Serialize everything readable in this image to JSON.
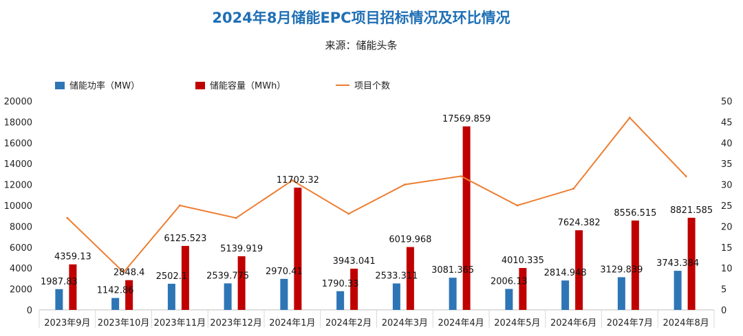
{
  "chart_data": {
    "type": "bar",
    "title": "2024年8月储能EPC项目招标情况及环比情况",
    "subtitle": "来源：储能头条",
    "categories": [
      "2023年9月",
      "2023年10月",
      "2023年11月",
      "2023年12月",
      "2024年1月",
      "2024年2月",
      "2024年3月",
      "2024年4月",
      "2024年5月",
      "2024年6月",
      "2024年7月",
      "2024年8月"
    ],
    "series": [
      {
        "name": "储能功率（MW）",
        "chart": "bar",
        "axis": "left",
        "color": "#2E75B6",
        "values": [
          1987.83,
          1142.86,
          2502.1,
          2539.775,
          2970.41,
          1790.33,
          2533.311,
          3081.365,
          2006.13,
          2814.948,
          3129.839,
          3743.384
        ],
        "labels": [
          "1987.83",
          "1142.86",
          "2502.1",
          "2539.775",
          "2970.41",
          "1790.33",
          "2533.311",
          "3081.365",
          "2006.13",
          "2814.948",
          "3129.839",
          "3743.384"
        ]
      },
      {
        "name": "储能容量（MWh）",
        "chart": "bar",
        "axis": "left",
        "color": "#C00000",
        "values": [
          4359.13,
          2848.4,
          6125.523,
          5139.919,
          11702.32,
          3943.041,
          6019.968,
          17569.859,
          4010.335,
          7624.382,
          8556.515,
          8821.585
        ],
        "labels": [
          "4359.13",
          "2848.4",
          "6125.523",
          "5139.919",
          "11702.32",
          "3943.041",
          "6019.968",
          "17569.859",
          "4010.335",
          "7624.382",
          "8556.515",
          "8821.585"
        ]
      },
      {
        "name": "项目个数",
        "chart": "line",
        "axis": "right",
        "color": "#ED7D31",
        "values": [
          22,
          9,
          25,
          22,
          31,
          23,
          30,
          32,
          25,
          29,
          46,
          32
        ]
      }
    ],
    "y_left": {
      "range": [
        0,
        20000
      ],
      "ticks": [
        "0",
        "2000",
        "4000",
        "6000",
        "8000",
        "10000",
        "12000",
        "14000",
        "16000",
        "18000",
        "20000"
      ]
    },
    "y_right": {
      "range": [
        0,
        50
      ],
      "ticks": [
        "0",
        "5",
        "10",
        "15",
        "20",
        "25",
        "30",
        "35",
        "40",
        "45",
        "50"
      ]
    },
    "grid": false,
    "legend": "top-left"
  }
}
